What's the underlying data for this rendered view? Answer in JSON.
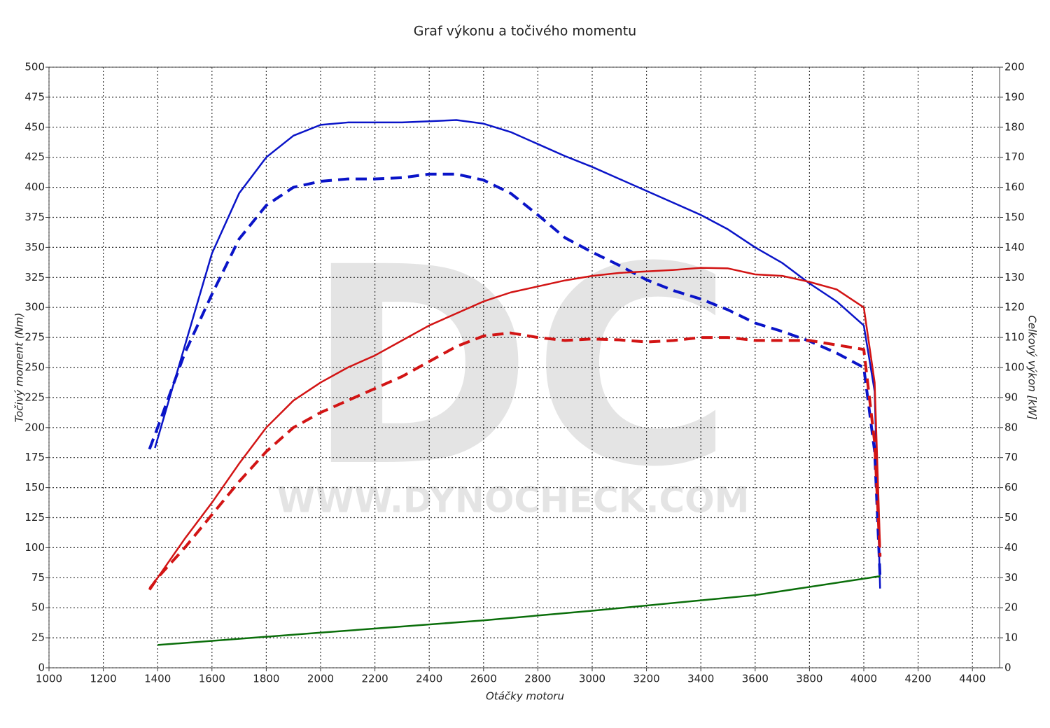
{
  "chart_data": {
    "type": "line",
    "title": "Graf výkonu a točivého momentu",
    "xlabel": "Otáčky motoru",
    "ylabel": "Točivý moment (Nm)",
    "y2label": "Celkový výkon [kW]",
    "watermark": [
      "DC",
      "WWW.DYNOCHECK.COM"
    ],
    "xlim": [
      1000,
      4500
    ],
    "xticks": [
      1000,
      1200,
      1400,
      1600,
      1800,
      2000,
      2200,
      2400,
      2600,
      2800,
      3000,
      3200,
      3400,
      3600,
      3800,
      4000,
      4200,
      4400
    ],
    "ylim": [
      0,
      500
    ],
    "yticks": [
      0,
      25,
      50,
      75,
      100,
      125,
      150,
      175,
      200,
      225,
      250,
      275,
      300,
      325,
      350,
      375,
      400,
      425,
      450,
      475,
      500
    ],
    "y2lim": [
      0,
      200
    ],
    "y2ticks": [
      0,
      10,
      20,
      30,
      40,
      50,
      60,
      70,
      80,
      90,
      100,
      110,
      120,
      130,
      140,
      150,
      160,
      170,
      180,
      190,
      200
    ],
    "grid": true,
    "series": [
      {
        "color": "#0a14c8",
        "dash": false,
        "x": [
          1390,
          1500,
          1600,
          1700,
          1800,
          1900,
          2000,
          2100,
          2200,
          2300,
          2400,
          2500,
          2600,
          2700,
          2800,
          2900,
          3000,
          3100,
          3200,
          3300,
          3400,
          3500,
          3600,
          3700,
          3800,
          3900,
          4000,
          4040,
          4060
        ],
        "values": [
          183,
          268,
          345,
          395,
          425,
          443,
          452,
          454,
          454,
          454,
          455,
          456,
          453,
          446,
          436,
          426,
          417,
          407,
          397,
          387,
          377,
          365,
          350,
          337,
          320,
          305,
          285,
          230,
          66
        ]
      },
      {
        "color": "#0a14c8",
        "dash": true,
        "x": [
          1370,
          1400,
          1500,
          1600,
          1700,
          1800,
          1900,
          2000,
          2100,
          2200,
          2300,
          2400,
          2500,
          2600,
          2700,
          2800,
          2900,
          3000,
          3100,
          3200,
          3300,
          3400,
          3500,
          3600,
          3700,
          3800,
          3900,
          4000,
          4040,
          4060
        ],
        "values": [
          182,
          200,
          262,
          311,
          357,
          385,
          400,
          405,
          407,
          407,
          408,
          411,
          411,
          406,
          395,
          377,
          358,
          346,
          335,
          323,
          314,
          307,
          298,
          287,
          280,
          272,
          262,
          250,
          180,
          75
        ]
      },
      {
        "color": "#d21414",
        "dash": false,
        "axis": "y2",
        "x": [
          1370,
          1400,
          1500,
          1600,
          1700,
          1800,
          1900,
          2000,
          2100,
          2200,
          2300,
          2400,
          2500,
          2600,
          2700,
          2800,
          2900,
          3000,
          3100,
          3200,
          3300,
          3400,
          3500,
          3600,
          3700,
          3800,
          3900,
          4000,
          4040,
          4060
        ],
        "values": [
          26.6,
          30,
          43,
          55,
          68,
          80,
          89,
          95,
          100,
          104,
          109,
          114,
          118,
          122,
          125,
          127,
          129,
          130.5,
          131.5,
          132,
          132.5,
          133.2,
          133,
          131,
          130.5,
          128.5,
          126,
          120,
          95,
          40
        ]
      },
      {
        "color": "#d21414",
        "dash": true,
        "axis": "y2",
        "x": [
          1370,
          1400,
          1500,
          1600,
          1700,
          1800,
          1900,
          2000,
          2100,
          2200,
          2300,
          2400,
          2500,
          2600,
          2700,
          2800,
          2900,
          3000,
          3100,
          3200,
          3300,
          3400,
          3500,
          3600,
          3700,
          3800,
          3900,
          4000,
          4040,
          4060
        ],
        "values": [
          26,
          30,
          40,
          51,
          62,
          72,
          80,
          85,
          89,
          93,
          97,
          102,
          107,
          110.5,
          111.5,
          110,
          109,
          109.5,
          109.2,
          108.5,
          109,
          110,
          110,
          109,
          109,
          109,
          107.5,
          106,
          75,
          37
        ]
      },
      {
        "color": "#0a6e0a",
        "dash": false,
        "axis": "y2",
        "x": [
          1400,
          2000,
          2600,
          3000,
          3600,
          4060
        ],
        "values": [
          7.6,
          11.7,
          15.8,
          19,
          24.2,
          30.5
        ]
      }
    ]
  }
}
